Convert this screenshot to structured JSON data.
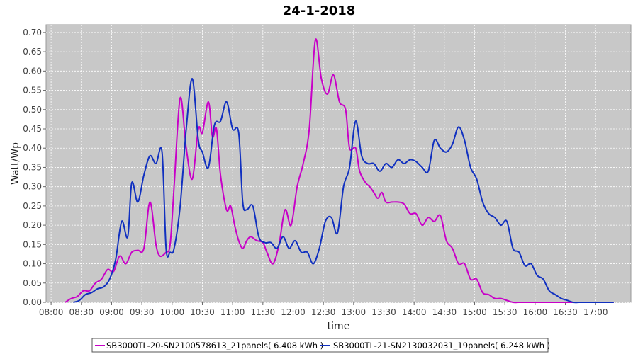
{
  "chart_data": {
    "type": "line",
    "title": "24-1-2018",
    "xlabel": "time",
    "ylabel": "Watt/Wp",
    "xlim": [
      "07:55",
      "17:35"
    ],
    "ylim": [
      0,
      0.72
    ],
    "x_ticks": [
      "08:00",
      "08:30",
      "09:00",
      "09:30",
      "10:00",
      "10:30",
      "11:00",
      "11:30",
      "12:00",
      "12:30",
      "13:00",
      "13:30",
      "14:00",
      "14:30",
      "15:00",
      "15:30",
      "16:00",
      "16:30",
      "17:00"
    ],
    "y_ticks": [
      "0.00",
      "0.05",
      "0.10",
      "0.15",
      "0.20",
      "0.25",
      "0.30",
      "0.35",
      "0.40",
      "0.45",
      "0.50",
      "0.55",
      "0.60",
      "0.65",
      "0.70"
    ],
    "grid": true,
    "legend_position": "bottom",
    "series": [
      {
        "name": "SB3000TL-20-SN2100578613_21panels( 6.408 kWh )",
        "color": "#c800c8",
        "x": [
          "08:14",
          "08:20",
          "08:26",
          "08:32",
          "08:38",
          "08:44",
          "08:50",
          "08:56",
          "09:02",
          "09:08",
          "09:14",
          "09:20",
          "09:26",
          "09:32",
          "09:38",
          "09:44",
          "09:48",
          "09:54",
          "09:58",
          "10:02",
          "10:08",
          "10:14",
          "10:20",
          "10:26",
          "10:30",
          "10:36",
          "10:40",
          "10:44",
          "10:48",
          "10:54",
          "10:58",
          "11:02",
          "11:06",
          "11:10",
          "11:14",
          "11:18",
          "11:24",
          "11:30",
          "11:34",
          "11:40",
          "11:46",
          "11:52",
          "11:58",
          "12:04",
          "12:10",
          "12:16",
          "12:22",
          "12:28",
          "12:34",
          "12:40",
          "12:46",
          "12:52",
          "12:56",
          "13:02",
          "13:06",
          "13:12",
          "13:16",
          "13:20",
          "13:24",
          "13:28",
          "13:32",
          "13:38",
          "13:44",
          "13:50",
          "13:56",
          "14:02",
          "14:08",
          "14:14",
          "14:20",
          "14:26",
          "14:32",
          "14:38",
          "14:44",
          "14:50",
          "14:56",
          "15:02",
          "15:08",
          "15:14",
          "15:20",
          "15:26",
          "15:32",
          "15:38",
          "15:44",
          "15:50",
          "15:56",
          "16:02",
          "16:08",
          "16:14",
          "16:20",
          "16:26",
          "16:32",
          "16:38",
          "16:44",
          "16:50",
          "16:56",
          "17:02",
          "17:08",
          "17:14",
          "17:18"
        ],
        "values": [
          0.0,
          0.01,
          0.015,
          0.03,
          0.03,
          0.05,
          0.06,
          0.085,
          0.08,
          0.12,
          0.1,
          0.13,
          0.135,
          0.14,
          0.26,
          0.15,
          0.12,
          0.13,
          0.15,
          0.3,
          0.53,
          0.4,
          0.32,
          0.45,
          0.44,
          0.52,
          0.43,
          0.45,
          0.33,
          0.24,
          0.25,
          0.2,
          0.16,
          0.14,
          0.16,
          0.17,
          0.16,
          0.155,
          0.13,
          0.1,
          0.15,
          0.24,
          0.2,
          0.3,
          0.36,
          0.45,
          0.68,
          0.58,
          0.54,
          0.59,
          0.52,
          0.5,
          0.4,
          0.4,
          0.34,
          0.31,
          0.3,
          0.285,
          0.27,
          0.285,
          0.26,
          0.26,
          0.26,
          0.255,
          0.23,
          0.23,
          0.2,
          0.22,
          0.21,
          0.225,
          0.16,
          0.14,
          0.1,
          0.1,
          0.06,
          0.06,
          0.025,
          0.02,
          0.01,
          0.01,
          0.005,
          0.0,
          0.0,
          0.0,
          0.0,
          0.0,
          0.0,
          0.0,
          0.0,
          0.0,
          0.0,
          0.0,
          0.0,
          0.0,
          0.0,
          0.0,
          0.0,
          0.0,
          0.0
        ]
      },
      {
        "name": "SB3000TL-21-SN2130032031_19panels( 6.248 kWh )",
        "color": "#1030c0",
        "x": [
          "08:22",
          "08:28",
          "08:34",
          "08:40",
          "08:46",
          "08:52",
          "08:58",
          "09:04",
          "09:10",
          "09:16",
          "09:20",
          "09:26",
          "09:32",
          "09:38",
          "09:44",
          "09:50",
          "09:54",
          "09:58",
          "10:02",
          "10:08",
          "10:14",
          "10:20",
          "10:26",
          "10:30",
          "10:36",
          "10:42",
          "10:48",
          "10:54",
          "11:00",
          "11:06",
          "11:10",
          "11:14",
          "11:20",
          "11:26",
          "11:32",
          "11:38",
          "11:44",
          "11:50",
          "11:56",
          "12:02",
          "12:08",
          "12:14",
          "12:20",
          "12:26",
          "12:32",
          "12:38",
          "12:44",
          "12:50",
          "12:56",
          "13:02",
          "13:08",
          "13:14",
          "13:20",
          "13:26",
          "13:32",
          "13:38",
          "13:44",
          "13:50",
          "13:56",
          "14:02",
          "14:08",
          "14:14",
          "14:20",
          "14:26",
          "14:32",
          "14:38",
          "14:44",
          "14:50",
          "14:56",
          "15:02",
          "15:08",
          "15:14",
          "15:20",
          "15:26",
          "15:32",
          "15:38",
          "15:44",
          "15:50",
          "15:56",
          "16:02",
          "16:08",
          "16:14",
          "16:20",
          "16:26",
          "16:32",
          "16:38",
          "16:44",
          "16:50",
          "16:56",
          "17:02",
          "17:08",
          "17:14",
          "17:18"
        ],
        "values": [
          0.0,
          0.005,
          0.02,
          0.025,
          0.035,
          0.04,
          0.06,
          0.11,
          0.21,
          0.17,
          0.31,
          0.26,
          0.33,
          0.38,
          0.36,
          0.39,
          0.14,
          0.13,
          0.14,
          0.25,
          0.45,
          0.58,
          0.42,
          0.39,
          0.35,
          0.46,
          0.47,
          0.52,
          0.45,
          0.44,
          0.26,
          0.24,
          0.25,
          0.17,
          0.155,
          0.155,
          0.14,
          0.17,
          0.14,
          0.16,
          0.13,
          0.13,
          0.1,
          0.14,
          0.21,
          0.22,
          0.18,
          0.3,
          0.35,
          0.47,
          0.38,
          0.36,
          0.36,
          0.34,
          0.36,
          0.35,
          0.37,
          0.36,
          0.37,
          0.365,
          0.35,
          0.34,
          0.42,
          0.4,
          0.39,
          0.41,
          0.455,
          0.42,
          0.35,
          0.32,
          0.26,
          0.23,
          0.22,
          0.2,
          0.21,
          0.14,
          0.13,
          0.095,
          0.1,
          0.07,
          0.06,
          0.03,
          0.02,
          0.01,
          0.005,
          0.0,
          0.0,
          0.0,
          0.0,
          0.0,
          0.0,
          0.0,
          0.0
        ]
      }
    ]
  }
}
